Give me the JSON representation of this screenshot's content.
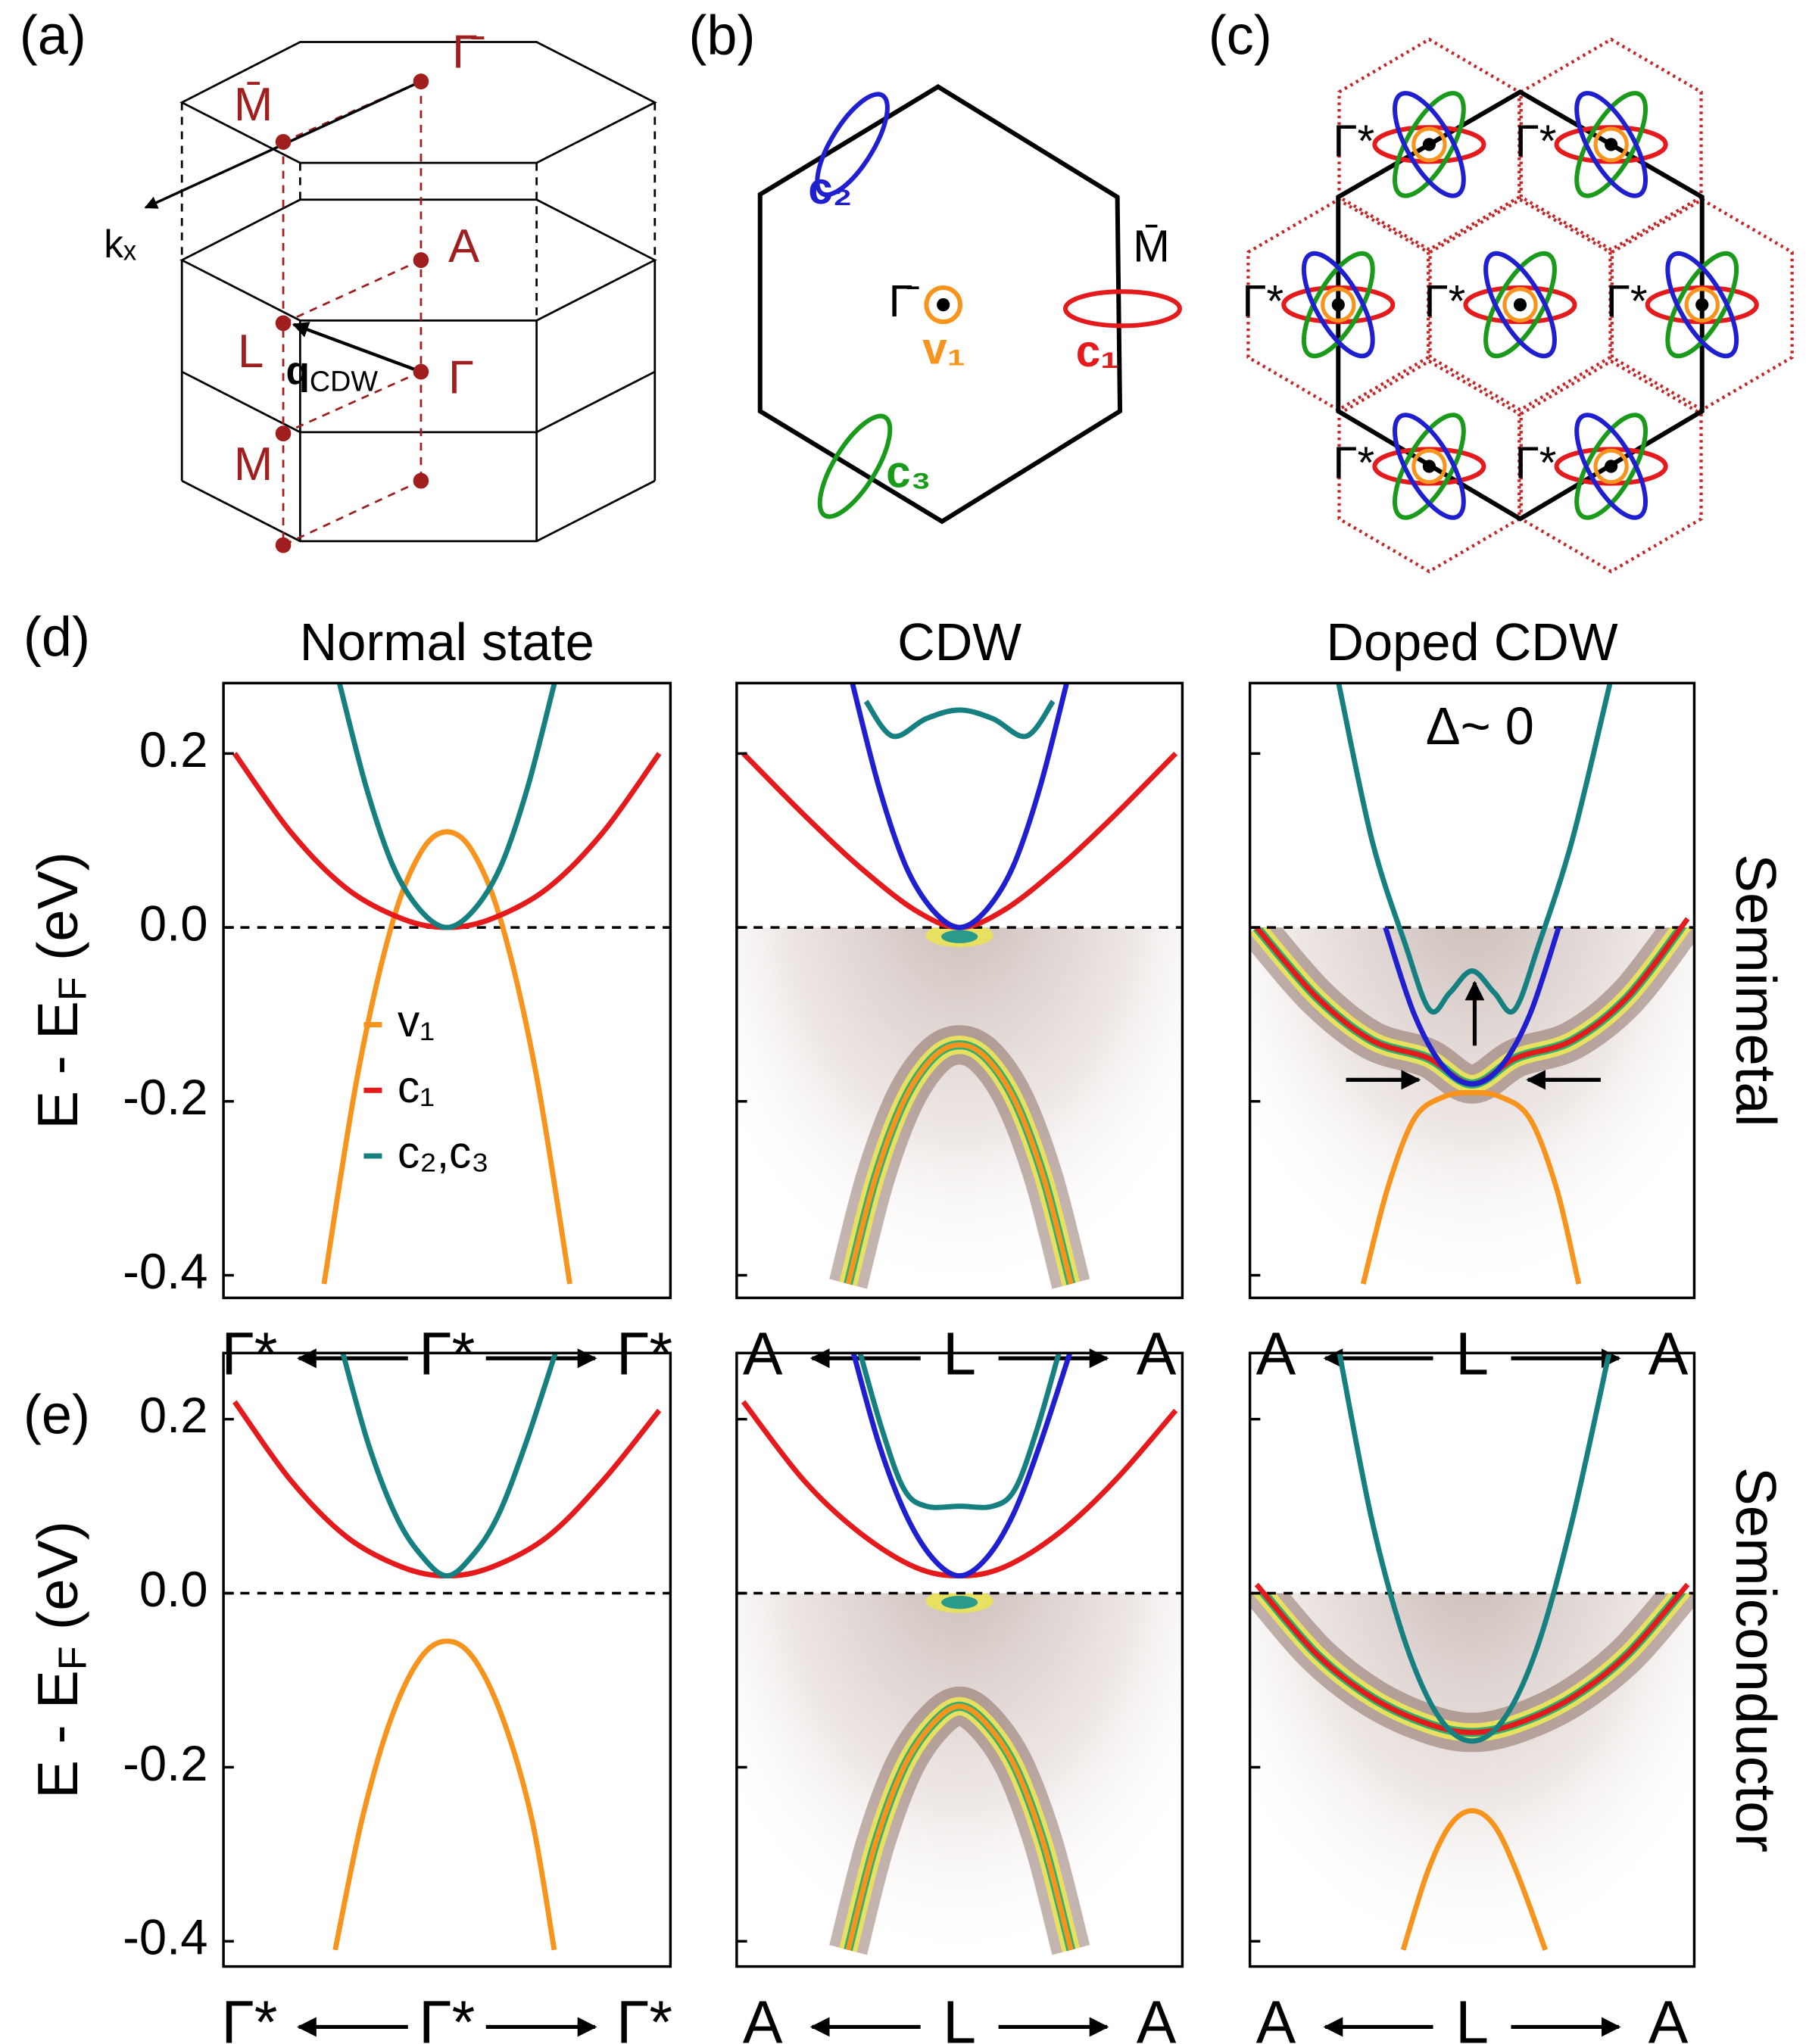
{
  "panels": {
    "a": {
      "label": "(a)",
      "points": {
        "gamma_bar": "Γ̄",
        "m_bar": "M̄",
        "a": "A",
        "l": "L",
        "gamma": "Γ",
        "m": "M"
      },
      "kx": "kₓ",
      "q": {
        "main": "q",
        "sub": "CDW"
      }
    },
    "b": {
      "label": "(b)",
      "c2": "c₂",
      "gamma_bar": "Γ̄",
      "v1": "v₁",
      "m_bar": "M̄",
      "c1": "c₁",
      "c3": "c₃"
    },
    "c": {
      "label": "(c)",
      "point_labels": [
        "Γ*",
        "Γ*",
        "Γ*",
        "Γ*",
        "Γ*",
        "Γ*",
        "Γ*"
      ]
    }
  },
  "chart_data": [
    {
      "type": "line",
      "panel_label": "(d)",
      "title": "Normal state",
      "ylabel": {
        "main": "E - E",
        "sub": "F",
        "unit": " (eV)"
      },
      "xlim": [
        -1,
        1
      ],
      "ylim": [
        -0.426,
        0.281
      ],
      "yticks": [
        0.2,
        {
          "value": 0,
          "label": "0.0"
        },
        -0.2,
        -0.4
      ],
      "xlabels": [
        "Γ*",
        "Γ*",
        "Γ*"
      ],
      "legend": "left",
      "series": [
        {
          "name": "v₁",
          "color": "#f7941d",
          "x": [
            -0.55,
            -0.4,
            -0.25,
            -0.12,
            0,
            0.12,
            0.25,
            0.4,
            0.55
          ],
          "values": [
            -0.41,
            -0.17,
            0.0,
            0.085,
            0.11,
            0.085,
            0.0,
            -0.17,
            -0.41
          ]
        },
        {
          "name": "c₁",
          "color": "#e41a1c",
          "x": [
            -0.95,
            -0.7,
            -0.45,
            -0.2,
            0,
            0.2,
            0.45,
            0.7,
            0.95
          ],
          "values": [
            0.2,
            0.11,
            0.045,
            0.01,
            0.0,
            0.01,
            0.045,
            0.11,
            0.2
          ]
        },
        {
          "name": "c₂,c₃",
          "color": "#168080",
          "x": [
            -0.48,
            -0.36,
            -0.24,
            -0.12,
            0,
            0.12,
            0.24,
            0.36,
            0.48
          ],
          "values": [
            0.28,
            0.16,
            0.07,
            0.02,
            0.0,
            0.02,
            0.07,
            0.16,
            0.28
          ]
        }
      ]
    },
    {
      "type": "line",
      "title": "CDW",
      "xlim": [
        -1,
        1
      ],
      "ylim": [
        -0.426,
        0.281
      ],
      "yticks": [
        0.2,
        0,
        -0.2,
        -0.4
      ],
      "xlabels": [
        "A",
        "L",
        "A"
      ],
      "series": [
        {
          "color": "#e41a1c",
          "x": [
            -0.97,
            -0.7,
            -0.45,
            -0.2,
            0,
            0.2,
            0.45,
            0.7,
            0.97
          ],
          "values": [
            0.2,
            0.13,
            0.07,
            0.02,
            0.0,
            0.02,
            0.07,
            0.13,
            0.2
          ]
        },
        {
          "color": "#1f1fd0",
          "x": [
            -0.48,
            -0.36,
            -0.24,
            -0.12,
            0,
            0.12,
            0.24,
            0.36,
            0.48
          ],
          "values": [
            0.28,
            0.16,
            0.07,
            0.02,
            0.0,
            0.02,
            0.07,
            0.16,
            0.28
          ]
        },
        {
          "color": "#168080",
          "x": [
            -0.42,
            -0.3,
            -0.15,
            0,
            0.15,
            0.3,
            0.42
          ],
          "values": [
            0.26,
            0.22,
            0.24,
            0.25,
            0.24,
            0.22,
            0.26
          ]
        },
        {
          "color": "#f7941d",
          "x": [
            -0.5,
            -0.38,
            -0.25,
            -0.12,
            0,
            0.12,
            0.25,
            0.38,
            0.5
          ],
          "values": [
            -0.41,
            -0.29,
            -0.2,
            -0.15,
            -0.135,
            -0.15,
            -0.2,
            -0.29,
            -0.41
          ]
        }
      ]
    },
    {
      "type": "line",
      "title": "Doped CDW",
      "annotation": "Δ~ 0",
      "row_label": "Semimetal",
      "xlim": [
        -1,
        1
      ],
      "ylim": [
        -0.426,
        0.281
      ],
      "yticks": [
        0.2,
        0,
        -0.2,
        -0.4
      ],
      "xlabels": [
        "A",
        "L",
        "A"
      ],
      "series": [
        {
          "color": "#e41a1c",
          "x": [
            -0.97,
            -0.7,
            -0.45,
            -0.2,
            0,
            0.2,
            0.45,
            0.7,
            0.97
          ],
          "values": [
            0.0,
            -0.08,
            -0.13,
            -0.15,
            -0.18,
            -0.15,
            -0.13,
            -0.08,
            0.01
          ]
        },
        {
          "color": "#1f1fd0",
          "x": [
            -0.39,
            -0.26,
            -0.13,
            0,
            0.13,
            0.26,
            0.39
          ],
          "values": [
            0.0,
            -0.1,
            -0.16,
            -0.18,
            -0.16,
            -0.1,
            0.0
          ]
        },
        {
          "color": "#168080",
          "x": [
            -0.6,
            -0.45,
            -0.3,
            -0.19,
            -0.1,
            0,
            0.1,
            0.19,
            0.3,
            0.45,
            0.62
          ],
          "values": [
            0.28,
            0.1,
            -0.02,
            -0.095,
            -0.075,
            -0.05,
            -0.075,
            -0.095,
            -0.02,
            0.1,
            0.28
          ]
        },
        {
          "color": "#f7941d",
          "x": [
            -0.49,
            -0.38,
            -0.26,
            -0.13,
            0,
            0.13,
            0.26,
            0.38,
            0.48
          ],
          "values": [
            -0.41,
            -0.3,
            -0.22,
            -0.195,
            -0.19,
            -0.195,
            -0.22,
            -0.3,
            -0.41
          ]
        }
      ]
    },
    {
      "type": "line",
      "panel_label": "(e)",
      "ylabel": {
        "main": "E - E",
        "sub": "F",
        "unit": " (eV)"
      },
      "xlim": [
        -1,
        1
      ],
      "ylim": [
        -0.429,
        0.276
      ],
      "yticks": [
        0.2,
        {
          "value": 0,
          "label": "0.0"
        },
        -0.2,
        -0.4
      ],
      "xlabels": [
        "Γ*",
        "Γ*",
        "Γ*"
      ],
      "series": [
        {
          "color": "#e41a1c",
          "x": [
            -0.95,
            -0.7,
            -0.45,
            -0.2,
            0,
            0.2,
            0.45,
            0.7,
            0.95
          ],
          "values": [
            0.22,
            0.13,
            0.065,
            0.03,
            0.02,
            0.03,
            0.065,
            0.13,
            0.21
          ]
        },
        {
          "color": "#168080",
          "x": [
            -0.47,
            -0.35,
            -0.23,
            -0.12,
            0,
            0.12,
            0.23,
            0.35,
            0.49
          ],
          "values": [
            0.28,
            0.17,
            0.09,
            0.045,
            0.02,
            0.045,
            0.09,
            0.17,
            0.28
          ]
        },
        {
          "color": "#f7941d",
          "x": [
            -0.5,
            -0.38,
            -0.25,
            -0.12,
            0,
            0.12,
            0.25,
            0.38,
            0.48
          ],
          "values": [
            -0.41,
            -0.26,
            -0.144,
            -0.075,
            -0.055,
            -0.075,
            -0.144,
            -0.26,
            -0.41
          ]
        }
      ]
    },
    {
      "type": "line",
      "xlim": [
        -1,
        1
      ],
      "ylim": [
        -0.429,
        0.276
      ],
      "yticks": [
        0.2,
        0,
        -0.2,
        -0.4
      ],
      "xlabels": [
        "A",
        "L",
        "A"
      ],
      "series": [
        {
          "color": "#e41a1c",
          "x": [
            -0.97,
            -0.7,
            -0.45,
            -0.2,
            0,
            0.2,
            0.45,
            0.7,
            0.97
          ],
          "values": [
            0.22,
            0.13,
            0.07,
            0.03,
            0.02,
            0.03,
            0.07,
            0.13,
            0.21
          ]
        },
        {
          "color": "#1f1fd0",
          "x": [
            -0.48,
            -0.36,
            -0.24,
            -0.12,
            0,
            0.12,
            0.24,
            0.36,
            0.5
          ],
          "values": [
            0.28,
            0.17,
            0.09,
            0.04,
            0.02,
            0.04,
            0.09,
            0.17,
            0.28
          ]
        },
        {
          "color": "#168080",
          "x": [
            -0.45,
            -0.35,
            -0.25,
            -0.15,
            0,
            0.15,
            0.25,
            0.35,
            0.45
          ],
          "values": [
            0.28,
            0.19,
            0.12,
            0.1,
            0.1,
            0.1,
            0.12,
            0.19,
            0.28
          ]
        },
        {
          "color": "#f7941d",
          "x": [
            -0.5,
            -0.38,
            -0.25,
            -0.12,
            0,
            0.12,
            0.25,
            0.38,
            0.5
          ],
          "values": [
            -0.41,
            -0.29,
            -0.2,
            -0.15,
            -0.13,
            -0.15,
            -0.2,
            -0.29,
            -0.41
          ]
        }
      ]
    },
    {
      "type": "line",
      "row_label": "Semiconductor",
      "xlim": [
        -1,
        1
      ],
      "ylim": [
        -0.429,
        0.276
      ],
      "yticks": [
        0.2,
        0,
        -0.2,
        -0.4
      ],
      "xlabels": [
        "A",
        "L",
        "A"
      ],
      "series": [
        {
          "color": "#e41a1c",
          "x": [
            -0.97,
            -0.7,
            -0.45,
            -0.2,
            0,
            0.2,
            0.45,
            0.7,
            0.97
          ],
          "values": [
            0.01,
            -0.07,
            -0.12,
            -0.15,
            -0.16,
            -0.15,
            -0.12,
            -0.07,
            0.01
          ]
        },
        {
          "color": "#168080",
          "x": [
            -0.6,
            -0.45,
            -0.3,
            -0.15,
            0,
            0.15,
            0.3,
            0.45,
            0.62
          ],
          "values": [
            0.28,
            0.083,
            -0.057,
            -0.142,
            -0.17,
            -0.142,
            -0.057,
            0.083,
            0.28
          ]
        },
        {
          "color": "#f7941d",
          "x": [
            -0.31,
            -0.2,
            -0.1,
            0,
            0.1,
            0.2,
            0.33
          ],
          "values": [
            -0.41,
            -0.32,
            -0.267,
            -0.25,
            -0.267,
            -0.32,
            -0.41
          ]
        }
      ]
    }
  ]
}
